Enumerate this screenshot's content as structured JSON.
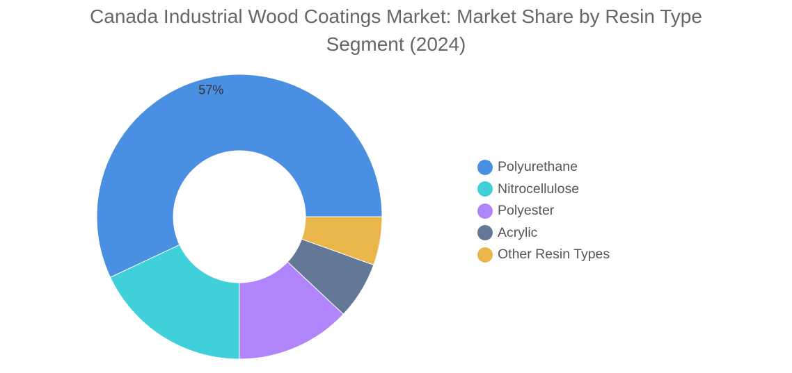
{
  "title_line1": "Canada Industrial Wood Coatings Market: Market Share by Resin Type",
  "title_line2": "Segment (2024)",
  "chart_data": {
    "type": "pie",
    "variant": "donut",
    "title": "Canada Industrial Wood Coatings Market: Market Share by Resin Type Segment (2024)",
    "unit": "%",
    "legend_placement": "right",
    "slices": [
      {
        "name": "Polyurethane",
        "value": 57,
        "color": "#4A90E2",
        "label": "57%"
      },
      {
        "name": "Nitrocellulose",
        "value": 18,
        "color": "#40D0DA",
        "label": ""
      },
      {
        "name": "Polyester",
        "value": 13,
        "color": "#B084FA",
        "label": ""
      },
      {
        "name": "Acrylic",
        "value": 6.5,
        "color": "#637796",
        "label": ""
      },
      {
        "name": "Other Resin Types",
        "value": 5.5,
        "color": "#EAB54A",
        "label": ""
      }
    ]
  }
}
